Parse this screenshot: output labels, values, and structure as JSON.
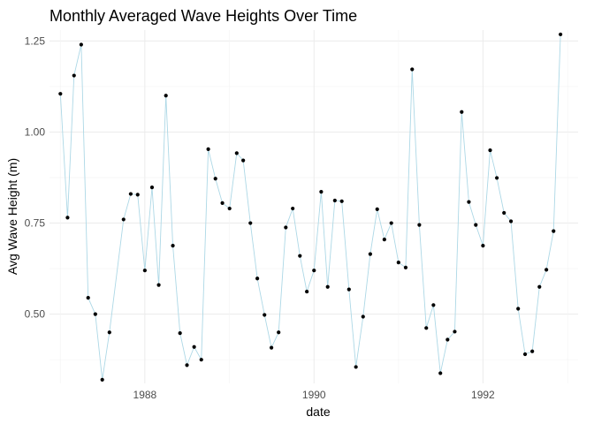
{
  "chart_data": {
    "type": "line",
    "title": "Monthly Averaged Wave Heights Over Time",
    "xlabel": "date",
    "ylabel": "Avg Wave Height (m)",
    "xlim": [
      "1986-11-15",
      "1993-02-15"
    ],
    "ylim": [
      0.31,
      1.28
    ],
    "x_ticks": [
      {
        "date": "1988-01-01",
        "label": "1988"
      },
      {
        "date": "1990-01-01",
        "label": "1990"
      },
      {
        "date": "1992-01-01",
        "label": "1992"
      }
    ],
    "y_ticks": [
      {
        "value": 0.5,
        "label": "0.50"
      },
      {
        "value": 0.75,
        "label": "0.75"
      },
      {
        "value": 1.0,
        "label": "1.00"
      },
      {
        "value": 1.25,
        "label": "1.25"
      }
    ],
    "grid": true,
    "line_color": "#add8e6",
    "point_color": "#000000",
    "series": [
      {
        "x": [
          "1987-01-01",
          "1987-02-01",
          "1987-03-01",
          "1987-04-01",
          "1987-05-01",
          "1987-06-01",
          "1987-07-01",
          "1987-08-01",
          "1987-10-01",
          "1987-11-01",
          "1987-12-01",
          "1988-01-01",
          "1988-02-01",
          "1988-03-01",
          "1988-04-01",
          "1988-05-01",
          "1988-06-01",
          "1988-07-01",
          "1988-08-01",
          "1988-09-01",
          "1988-10-01",
          "1988-11-01",
          "1988-12-01",
          "1989-01-01",
          "1989-02-01",
          "1989-03-01",
          "1989-04-01",
          "1989-05-01",
          "1989-06-01",
          "1989-07-01",
          "1989-08-01",
          "1989-09-01",
          "1989-10-01",
          "1989-11-01",
          "1989-12-01",
          "1990-01-01",
          "1990-02-01",
          "1990-03-01",
          "1990-04-01",
          "1990-05-01",
          "1990-06-01",
          "1990-07-01",
          "1990-08-01",
          "1990-09-01",
          "1990-10-01",
          "1990-11-01",
          "1990-12-01",
          "1991-01-01",
          "1991-02-01",
          "1991-03-01",
          "1991-04-01",
          "1991-05-01",
          "1991-06-01",
          "1991-07-01",
          "1991-08-01",
          "1991-09-01",
          "1991-10-01",
          "1991-11-01",
          "1991-12-01",
          "1992-01-01",
          "1992-02-01",
          "1992-03-01",
          "1992-04-01",
          "1992-05-01",
          "1992-06-01",
          "1992-07-01",
          "1992-08-01",
          "1992-09-01",
          "1992-10-01",
          "1992-11-01",
          "1992-12-01"
        ],
        "y": [
          1.105,
          0.765,
          1.155,
          1.24,
          0.545,
          0.5,
          0.32,
          0.45,
          0.76,
          0.83,
          0.828,
          0.62,
          0.848,
          0.58,
          1.1,
          0.688,
          0.448,
          0.36,
          0.41,
          0.375,
          0.953,
          0.872,
          0.805,
          0.79,
          0.942,
          0.922,
          0.75,
          0.598,
          0.498,
          0.408,
          0.45,
          0.738,
          0.79,
          0.66,
          0.562,
          0.62,
          0.836,
          0.575,
          0.812,
          0.81,
          0.568,
          0.355,
          0.493,
          0.665,
          0.788,
          0.705,
          0.75,
          0.642,
          0.628,
          1.172,
          0.745,
          0.462,
          0.525,
          0.338,
          0.43,
          0.452,
          1.055,
          0.808,
          0.745,
          0.688,
          0.95,
          0.874,
          0.778,
          0.755,
          0.515,
          0.39,
          0.398,
          0.575,
          0.622,
          0.728,
          1.268
        ]
      }
    ]
  }
}
